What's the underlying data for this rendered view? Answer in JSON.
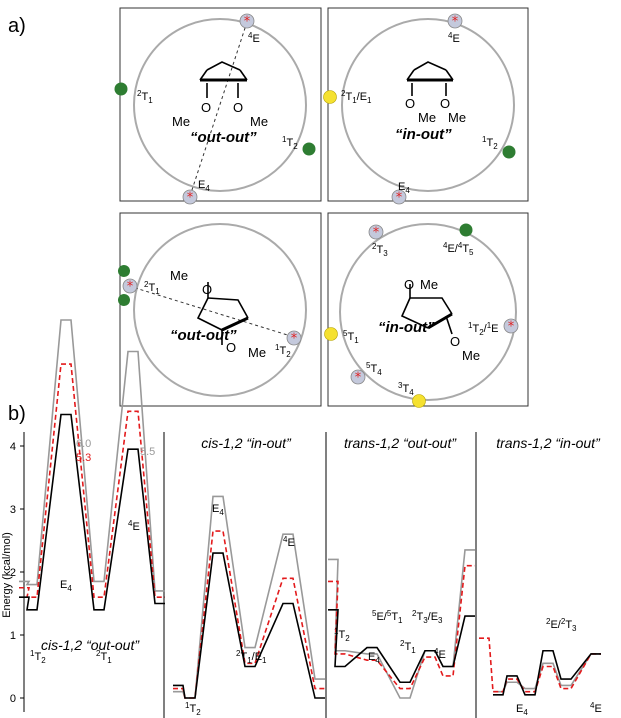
{
  "figure": {
    "part_a_label": "a)",
    "part_b_label": "b)"
  },
  "wheels": [
    {
      "conformation": "out-out",
      "substituent_labels": [
        "Me",
        "Me"
      ],
      "o_labels": [
        "O",
        "O"
      ],
      "points": [
        {
          "label": "4E",
          "type": "starred"
        },
        {
          "label": "2T1",
          "type": "green"
        },
        {
          "label": "1T2",
          "type": "green"
        },
        {
          "label": "E4",
          "type": "starred"
        }
      ]
    },
    {
      "conformation": "in-out",
      "substituent_labels": [
        "Me",
        "Me"
      ],
      "o_labels": [
        "O",
        "O"
      ],
      "points": [
        {
          "label": "4E",
          "type": "starred"
        },
        {
          "label": "2T1/E1",
          "type": "yellow"
        },
        {
          "label": "1T2",
          "type": "green"
        },
        {
          "label": "E4",
          "type": "starred"
        }
      ]
    },
    {
      "conformation": "out-out",
      "substituent_labels": [
        "Me",
        "Me"
      ],
      "o_labels": [
        "O",
        "O"
      ],
      "points": [
        {
          "label": "2T1",
          "type": "mixed"
        },
        {
          "label": "1T2",
          "type": "starred"
        }
      ]
    },
    {
      "conformation": "in-out",
      "substituent_labels": [
        "Me",
        "Me"
      ],
      "o_labels": [
        "O",
        "O"
      ],
      "points": [
        {
          "label": "2T3",
          "type": "starred"
        },
        {
          "label": "4E/4T5",
          "type": "green"
        },
        {
          "label": "5T1",
          "type": "yellow"
        },
        {
          "label": "1T2/1E",
          "type": "starred"
        },
        {
          "label": "5T4",
          "type": "starred"
        },
        {
          "label": "3T4",
          "type": "yellow"
        }
      ]
    }
  ],
  "chart_data": {
    "type": "line",
    "ylabel": "Energy (kcal/mol)",
    "ylim": [
      0,
      5
    ],
    "yticks": [
      "0",
      "1",
      "2",
      "3",
      "4"
    ],
    "colors": {
      "series_black": "#000000",
      "series_red": "#e31a1c",
      "series_gray": "#999999"
    },
    "panels": [
      {
        "title": "cis-1,2 “out-out”",
        "annotations": [
          "6.0",
          "5.3",
          "5.5"
        ],
        "point_labels": [
          "1T2",
          "E4",
          "2T1",
          "4E"
        ],
        "series": [
          {
            "color": "black",
            "values": [
              1.6,
              1.4,
              4.5,
              1.4,
              3.95,
              1.5
            ]
          },
          {
            "color": "red",
            "values": [
              1.75,
              1.6,
              5.3,
              1.6,
              4.55,
              1.6
            ]
          },
          {
            "color": "gray",
            "values": [
              1.85,
              1.8,
              6.0,
              1.85,
              5.5,
              1.7
            ]
          }
        ]
      },
      {
        "title": "cis-1,2 “in-out”",
        "point_labels": [
          "1T2",
          "E4",
          "2T1/E1",
          "4E"
        ],
        "series": [
          {
            "color": "black",
            "values": [
              0.2,
              0.0,
              2.3,
              0.5,
              1.5,
              0.0
            ]
          },
          {
            "color": "red",
            "values": [
              0.15,
              0.0,
              2.65,
              0.55,
              1.9,
              0.15
            ]
          },
          {
            "color": "gray",
            "values": [
              0.1,
              0.0,
              3.2,
              0.8,
              2.6,
              0.3
            ]
          }
        ]
      },
      {
        "title": "trans-1,2 “out-out”",
        "point_labels": [
          "1T2",
          "E4",
          "5E/5T1",
          "2T1",
          "2T3/E3",
          "4E"
        ],
        "series": [
          {
            "color": "black",
            "values": [
              1.4,
              0.5,
              0.8,
              0.25,
              0.75,
              0.5,
              1.3
            ]
          },
          {
            "color": "red",
            "values": [
              1.85,
              0.7,
              0.6,
              0.15,
              0.65,
              0.35,
              2.1
            ]
          },
          {
            "color": "gray",
            "values": [
              2.2,
              0.75,
              0.7,
              0.0,
              0.75,
              0.5,
              2.35
            ]
          }
        ]
      },
      {
        "title": "trans-1,2 “in-out”",
        "point_labels": [
          "E4",
          "2E/2T3",
          "4E"
        ],
        "series": [
          {
            "color": "black",
            "values": [
              null,
              0.05,
              0.35,
              0.05,
              0.75,
              0.3,
              0.7
            ]
          },
          {
            "color": "red",
            "values": [
              0.95,
              0.1,
              0.3,
              0.1,
              0.5,
              0.15,
              0.7
            ]
          },
          {
            "color": "gray",
            "values": [
              null,
              0.1,
              0.25,
              0.15,
              0.55,
              0.2,
              0.7
            ]
          }
        ]
      }
    ]
  }
}
